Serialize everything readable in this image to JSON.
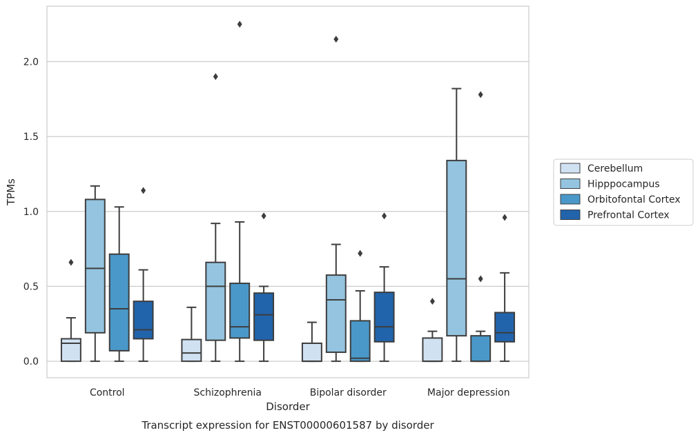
{
  "chart_data": {
    "type": "box",
    "caption": "Transcript expression for ENST00000601587 by disorder",
    "xlabel": "Disorder",
    "ylabel": "TPMs",
    "ylim": [
      -0.11,
      2.37
    ],
    "yticks": [
      "0.0",
      "0.5",
      "1.0",
      "1.5",
      "2.0"
    ],
    "ytick_values": [
      0.0,
      0.5,
      1.0,
      1.5,
      2.0
    ],
    "grid": "horizontal",
    "legend_position": "right",
    "categories": [
      "Control",
      "Schizophrenia",
      "Bipolar disorder",
      "Major depression"
    ],
    "series": [
      {
        "name": "Cerebellum",
        "color": "#d0e1f2",
        "boxes": [
          {
            "min": 0.0,
            "q1": 0.0,
            "median": 0.12,
            "q3": 0.15,
            "max": 0.29,
            "outliers": [
              0.66
            ]
          },
          {
            "min": 0.0,
            "q1": 0.0,
            "median": 0.055,
            "q3": 0.145,
            "max": 0.36,
            "outliers": []
          },
          {
            "min": 0.0,
            "q1": 0.0,
            "median": 0.0,
            "q3": 0.12,
            "max": 0.26,
            "outliers": []
          },
          {
            "min": 0.0,
            "q1": 0.0,
            "median": 0.0,
            "q3": 0.155,
            "max": 0.2,
            "outliers": [
              0.4
            ]
          }
        ]
      },
      {
        "name": "Hipppocampus",
        "color": "#94c4df",
        "boxes": [
          {
            "min": 0.0,
            "q1": 0.19,
            "median": 0.62,
            "q3": 1.08,
            "max": 1.17,
            "outliers": []
          },
          {
            "min": 0.0,
            "q1": 0.14,
            "median": 0.5,
            "q3": 0.66,
            "max": 0.92,
            "outliers": [
              1.9
            ]
          },
          {
            "min": 0.0,
            "q1": 0.06,
            "median": 0.41,
            "q3": 0.575,
            "max": 0.78,
            "outliers": [
              2.15
            ]
          },
          {
            "min": 0.0,
            "q1": 0.17,
            "median": 0.55,
            "q3": 1.34,
            "max": 1.82,
            "outliers": []
          }
        ]
      },
      {
        "name": "Orbitofontal Cortex",
        "color": "#4a98c9",
        "boxes": [
          {
            "min": 0.0,
            "q1": 0.07,
            "median": 0.35,
            "q3": 0.715,
            "max": 1.03,
            "outliers": []
          },
          {
            "min": 0.0,
            "q1": 0.155,
            "median": 0.23,
            "q3": 0.52,
            "max": 0.93,
            "outliers": [
              2.25
            ]
          },
          {
            "min": 0.0,
            "q1": 0.0,
            "median": 0.02,
            "q3": 0.27,
            "max": 0.47,
            "outliers": [
              0.72
            ]
          },
          {
            "min": 0.0,
            "q1": 0.0,
            "median": 0.0,
            "q3": 0.17,
            "max": 0.2,
            "outliers": [
              0.55,
              1.78
            ]
          }
        ]
      },
      {
        "name": "Prefrontal Cortex",
        "color": "#2164ab",
        "boxes": [
          {
            "min": 0.0,
            "q1": 0.15,
            "median": 0.21,
            "q3": 0.4,
            "max": 0.61,
            "outliers": [
              1.14
            ]
          },
          {
            "min": 0.0,
            "q1": 0.14,
            "median": 0.31,
            "q3": 0.455,
            "max": 0.5,
            "outliers": [
              0.97
            ]
          },
          {
            "min": 0.0,
            "q1": 0.13,
            "median": 0.23,
            "q3": 0.46,
            "max": 0.63,
            "outliers": [
              0.97
            ]
          },
          {
            "min": 0.0,
            "q1": 0.13,
            "median": 0.19,
            "q3": 0.325,
            "max": 0.59,
            "outliers": [
              0.96
            ]
          }
        ]
      }
    ]
  }
}
